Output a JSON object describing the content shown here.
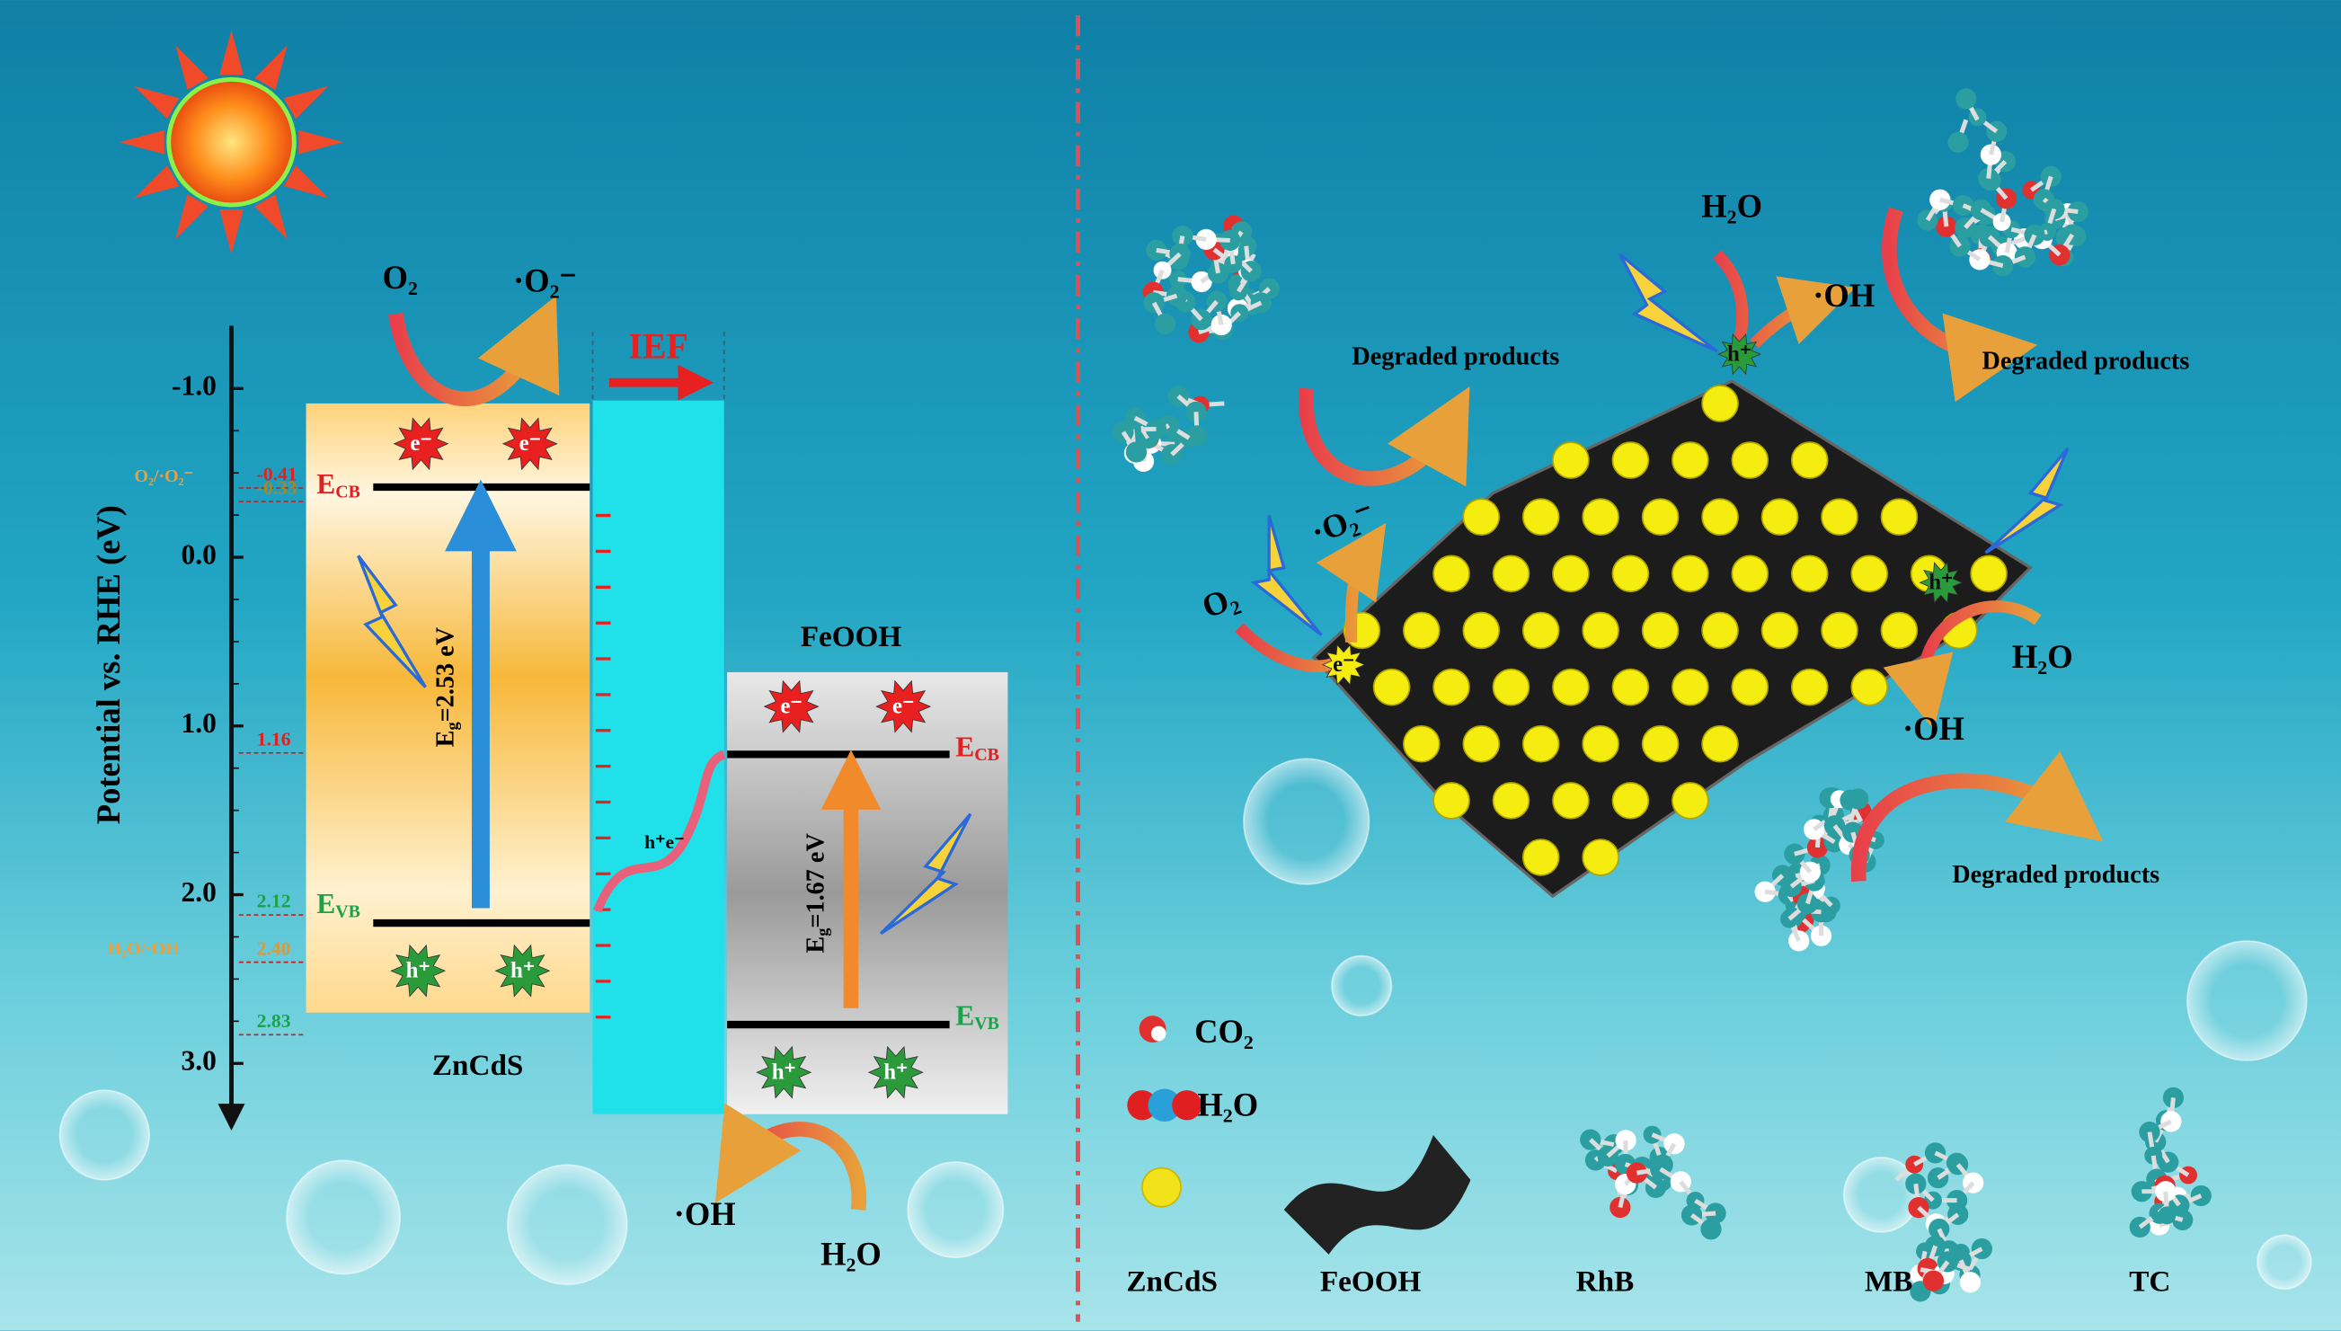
{
  "left_panel": {
    "axis": {
      "title": "Potential vs. RHE (eV)",
      "ticks": [
        {
          "value": -1.0,
          "label": "-1.0"
        },
        {
          "value": 0.0,
          "label": "0.0"
        },
        {
          "value": 1.0,
          "label": "1.0"
        },
        {
          "value": 2.0,
          "label": "2.0"
        },
        {
          "value": 3.0,
          "label": "3.0"
        }
      ]
    },
    "levels": [
      {
        "value": -0.41,
        "label": "-0.41",
        "color": "#e02020"
      },
      {
        "value": -0.33,
        "label": "-0.33",
        "color": "#a08a30"
      },
      {
        "value": 1.16,
        "label": "1.16",
        "color": "#e02020"
      },
      {
        "value": 2.12,
        "label": "2.12",
        "color": "#1aa34a"
      },
      {
        "value": 2.4,
        "label": "2.40",
        "color": "#d89a40"
      },
      {
        "value": 2.83,
        "label": "2.83",
        "color": "#1aa34a"
      }
    ],
    "redox_couples": {
      "superoxide": "O₂/·O₂⁻",
      "hydroxyl": "H₂O/·OH"
    },
    "oxygen": "O₂",
    "superoxide": "·O₂⁻",
    "hydroxyl": "·OH",
    "water": "H₂O",
    "electron": "e⁻",
    "hole": "h⁺",
    "interface_carriers": "h⁺e⁻",
    "ief": "IEF",
    "zncds": {
      "name": "ZnCdS",
      "cb": {
        "symbol": "E",
        "subscript": "CB"
      },
      "vb": {
        "symbol": "E",
        "subscript": "VB"
      },
      "band_gap": {
        "symbol": "E",
        "subscript": "g",
        "text": "=2.53 eV"
      }
    },
    "feooh": {
      "name": "FeOOH",
      "cb": {
        "symbol": "E",
        "subscript": "CB"
      },
      "vb": {
        "symbol": "E",
        "subscript": "VB"
      },
      "band_gap": {
        "symbol": "E",
        "subscript": "g",
        "text": "=1.67 eV"
      }
    }
  },
  "right_panel": {
    "water": "H₂O",
    "hydroxyl": "·OH",
    "oxygen": "O₂",
    "superoxide": "·O₂⁻",
    "electron": "e⁻",
    "hole": "h⁺",
    "degraded": "Degraded products",
    "legend": {
      "co2": "CO₂",
      "h2o": "H₂O"
    },
    "labels": [
      "ZnCdS",
      "FeOOH",
      "RhB",
      "MB",
      "TC"
    ]
  }
}
